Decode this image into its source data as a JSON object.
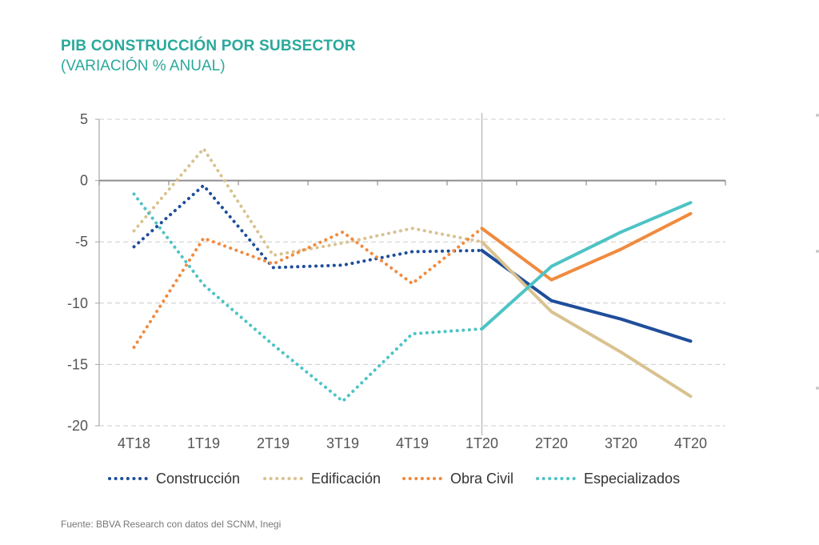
{
  "header": {
    "title": "PIB CONSTRUCCIÓN POR SUBSECTOR",
    "subtitle": "(VARIACIÓN % ANUAL)"
  },
  "source": "Fuente: BBVA Research con datos del SCNM, Inegi",
  "chart_data": {
    "type": "line",
    "categories": [
      "4T18",
      "1T19",
      "2T19",
      "3T19",
      "4T19",
      "1T20",
      "2T20",
      "3T20",
      "4T20"
    ],
    "ylim": [
      -20,
      5
    ],
    "yticks": [
      5,
      0,
      -5,
      -10,
      -15,
      -20
    ],
    "grid": true,
    "legend": "bottom",
    "notes": "Dotted segments 4T18–1T20 (observed), solid segments 1T20–4T20 (forecast); vertical divider at 1T20",
    "series": [
      {
        "name": "Construcción",
        "color": "#1f4e9a",
        "values": [
          -5.4,
          -0.4,
          -7.1,
          -6.9,
          -5.8,
          -5.7,
          -9.8,
          -11.3,
          -13.1
        ]
      },
      {
        "name": "Edificación",
        "color": "#d9c290",
        "values": [
          -4.1,
          2.6,
          -6.1,
          -5.1,
          -3.9,
          -5.0,
          -10.7,
          -14.0,
          -17.6
        ]
      },
      {
        "name": "Obra Civil",
        "color": "#f08a3e",
        "values": [
          -13.6,
          -4.7,
          -6.8,
          -4.2,
          -8.4,
          -3.9,
          -8.1,
          -5.6,
          -2.7
        ]
      },
      {
        "name": "Especializados",
        "color": "#4dc3c5",
        "values": [
          -1.1,
          -8.5,
          -13.4,
          -18.0,
          -12.5,
          -12.1,
          -7.0,
          -4.2,
          -1.8
        ]
      }
    ]
  }
}
